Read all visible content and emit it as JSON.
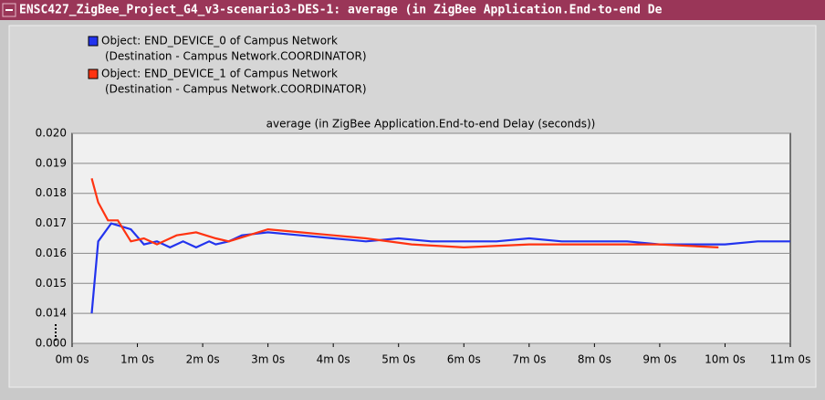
{
  "window_title": "ENSC427_ZigBee_Project_G4_v3-scenario3-DES-1: average (in ZigBee Application.End-to-end De",
  "chart_data": {
    "type": "line",
    "title": "average (in ZigBee Application.End-to-end Delay (seconds))",
    "series": [
      {
        "name": "Object: END_DEVICE_0 of Campus Network",
        "detail": "(Destination - Campus Network.COORDINATOR)",
        "color": "#2233ee",
        "x": [
          18,
          24,
          36,
          54,
          66,
          78,
          90,
          102,
          114,
          126,
          132,
          144,
          156,
          180,
          210,
          240,
          270,
          300,
          330,
          360,
          390,
          420,
          450,
          480,
          510,
          540,
          570,
          600,
          630,
          660
        ],
        "values": [
          0.014,
          0.0164,
          0.017,
          0.0168,
          0.0163,
          0.0164,
          0.0162,
          0.0164,
          0.0162,
          0.0164,
          0.0163,
          0.0164,
          0.0166,
          0.0167,
          0.0166,
          0.0165,
          0.0164,
          0.0165,
          0.0164,
          0.0164,
          0.0164,
          0.0165,
          0.0164,
          0.0164,
          0.0164,
          0.0163,
          0.0163,
          0.0163,
          0.0164,
          0.0164
        ],
        "x_fix": null
      },
      {
        "name": "Object: END_DEVICE_1 of Campus Network",
        "detail": "(Destination - Campus Network.COORDINATOR)",
        "color": "#ff3311",
        "x": [
          18,
          24,
          33,
          42,
          54,
          66,
          78,
          96,
          114,
          132,
          144,
          162,
          180,
          210,
          240,
          270,
          312,
          360,
          420,
          480,
          540,
          594
        ],
        "values": [
          0.0185,
          0.0177,
          0.0171,
          0.0171,
          0.0164,
          0.0165,
          0.0163,
          0.0166,
          0.0167,
          0.0165,
          0.0164,
          0.0166,
          0.0168,
          0.0167,
          0.0166,
          0.0165,
          0.0163,
          0.0162,
          0.0163,
          0.0163,
          0.0163,
          0.0162
        ]
      }
    ],
    "xlim": [
      0,
      660
    ],
    "xticks": [
      {
        "value": 0,
        "label": "0m 0s"
      },
      {
        "value": 60,
        "label": "1m 0s"
      },
      {
        "value": 120,
        "label": "2m 0s"
      },
      {
        "value": 180,
        "label": "3m 0s"
      },
      {
        "value": 240,
        "label": "4m 0s"
      },
      {
        "value": 300,
        "label": "5m 0s"
      },
      {
        "value": 360,
        "label": "6m 0s"
      },
      {
        "value": 420,
        "label": "7m 0s"
      },
      {
        "value": 480,
        "label": "8m 0s"
      },
      {
        "value": 540,
        "label": "9m 0s"
      },
      {
        "value": 600,
        "label": "10m 0s"
      },
      {
        "value": 660,
        "label": "11m 0s"
      }
    ],
    "ylim": [
      0,
      0.02
    ],
    "y_break": [
      0,
      0.013
    ],
    "yticks": [
      {
        "value": 0,
        "label": "0.000"
      },
      {
        "value": 0.014,
        "label": "0.014"
      },
      {
        "value": 0.015,
        "label": "0.015"
      },
      {
        "value": 0.016,
        "label": "0.016"
      },
      {
        "value": 0.017,
        "label": "0.017"
      },
      {
        "value": 0.018,
        "label": "0.018"
      },
      {
        "value": 0.019,
        "label": "0.019"
      },
      {
        "value": 0.02,
        "label": "0.020"
      }
    ],
    "grid": true
  }
}
